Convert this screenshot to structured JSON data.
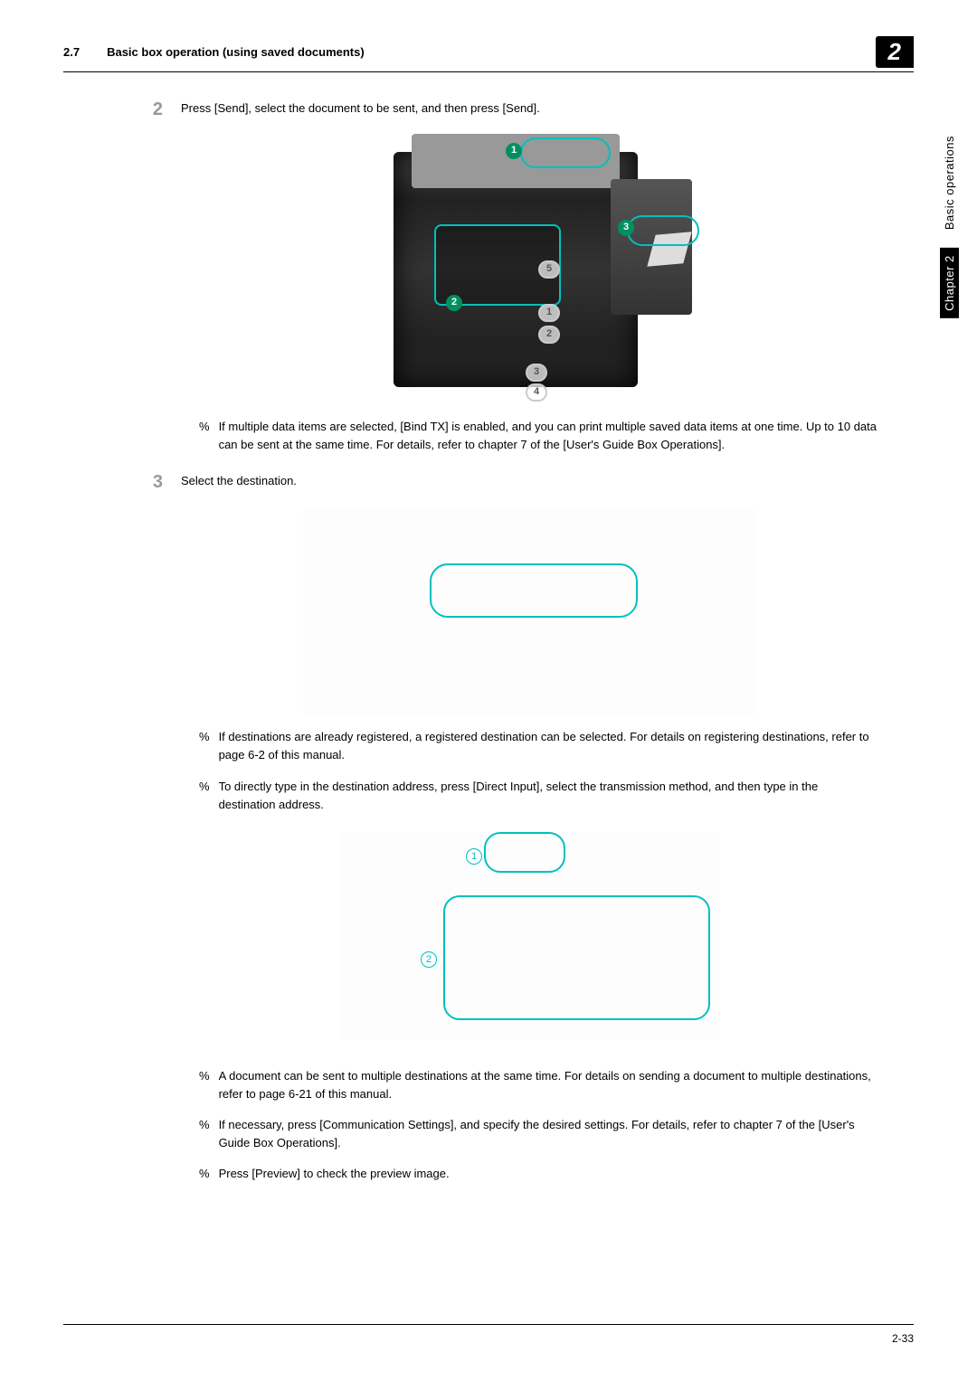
{
  "header": {
    "section_num": "2.7",
    "section_title": "Basic box operation (using saved documents)",
    "badge": "2"
  },
  "sidebar": {
    "chapter": "Chapter 2",
    "label": "Basic operations"
  },
  "steps": {
    "s2": {
      "num": "2",
      "text": "Press [Send], select the document to be sent, and then press [Send].",
      "note": "If multiple data items are selected, [Bind TX] is enabled, and you can print multiple saved data items at one time. Up to 10 data can be sent at the same time. For details, refer to chapter 7 of the [User's Guide Box Operations]."
    },
    "s3": {
      "num": "3",
      "text": "Select the destination.",
      "note_a": "If destinations are already registered, a registered destination can be selected. For details on registering destinations, refer to page 6-2 of this manual.",
      "note_b": "To directly type in the destination address, press [Direct Input], select the transmission method, and then type in the destination address.",
      "note_c": "A document can be sent to multiple destinations at the same time. For details on sending a document to multiple destinations, refer to page 6-21 of this manual.",
      "note_d": "If necessary, press [Communication Settings], and specify the desired settings. For details, refer to chapter 7 of the [User's Guide Box Operations].",
      "note_e": "Press [Preview] to check the preview image."
    }
  },
  "printer_callouts": {
    "c1": "1",
    "c2": "2",
    "c3": "3"
  },
  "trays": {
    "t1": "1",
    "t2": "2",
    "t3": "3",
    "t4": "4",
    "t5": "5"
  },
  "direct_callouts": {
    "n1": "1",
    "n2": "2"
  },
  "marker": "%",
  "colors": {
    "accent": "#00c0c0",
    "callout_green": "#009060",
    "step_gray": "#999999"
  },
  "footer": {
    "page": "2-33"
  }
}
